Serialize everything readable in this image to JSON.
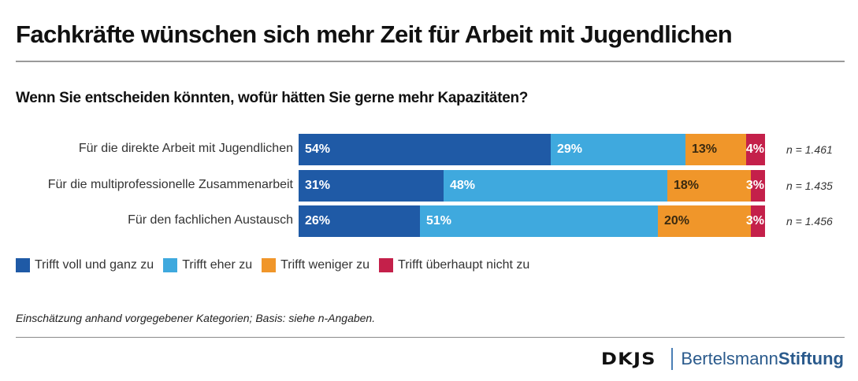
{
  "header": {
    "title": "Fachkräfte wünschen sich mehr Zeit für Arbeit mit Jugendlichen",
    "subtitle": "Wenn Sie entscheiden könnten, wofür hätten Sie gerne mehr Kapazitäten?"
  },
  "chart_data": {
    "type": "bar",
    "orientation": "horizontal",
    "stacked": true,
    "normalized": true,
    "title": "Fachkräfte wünschen sich mehr Zeit für Arbeit mit Jugendlichen",
    "subtitle": "Wenn Sie entscheiden könnten, wofür hätten Sie gerne mehr Kapazitäten?",
    "xlabel": "",
    "ylabel": "",
    "xlim": [
      0,
      100
    ],
    "grid": false,
    "legend_position": "bottom-left",
    "categories": [
      "Für die direkte Arbeit mit Jugendlichen",
      "Für die multiprofessionelle Zusammenarbeit",
      "Für den fachlichen Austausch"
    ],
    "n_labels": [
      "n = 1.461",
      "n = 1.435",
      "n = 1.456"
    ],
    "series": [
      {
        "name": "Trifft voll und ganz zu",
        "color": "#1f5aa6",
        "label_color": "#ffffff",
        "values": [
          54,
          31,
          26
        ],
        "labels": [
          "54%",
          "31%",
          "26%"
        ]
      },
      {
        "name": "Trifft eher zu",
        "color": "#3fa9de",
        "label_color": "#ffffff",
        "values": [
          29,
          48,
          51
        ],
        "labels": [
          "29%",
          "48%",
          "51%"
        ]
      },
      {
        "name": "Trifft weniger zu",
        "color": "#f0962a",
        "label_color": "#3a2a10",
        "values": [
          13,
          18,
          20
        ],
        "labels": [
          "13%",
          "18%",
          "20%"
        ]
      },
      {
        "name": "Trifft überhaupt nicht zu",
        "color": "#c4204a",
        "label_color": "#ffffff",
        "values": [
          4,
          3,
          3
        ],
        "labels": [
          "4%",
          "3%",
          "3%"
        ]
      }
    ]
  },
  "footnote": "Einschätzung anhand vorgegebener Kategorien; Basis: siehe n-Angaben.",
  "logos": {
    "dkjs": "DKJS",
    "bertelsmann_regular": "Bertelsmann",
    "bertelsmann_bold": "Stiftung"
  }
}
